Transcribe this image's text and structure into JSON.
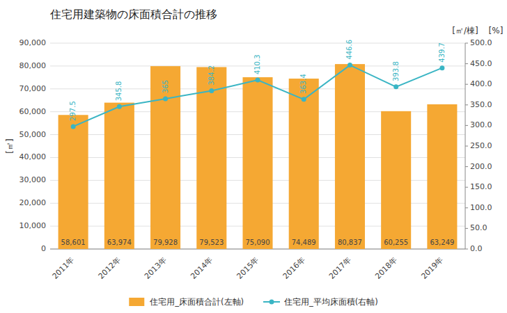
{
  "chart_data": {
    "type": "bar",
    "title": "住宅用建築物の床面積合計の推移",
    "categories": [
      "2011年",
      "2012年",
      "2013年",
      "2014年",
      "2015年",
      "2016年",
      "2017年",
      "2018年",
      "2019年"
    ],
    "series": [
      {
        "name": "住宅用_床面積合計(左軸)",
        "type": "bar",
        "color": "#f5a833",
        "values": [
          58601,
          63974,
          79928,
          79523,
          75090,
          74489,
          80837,
          60255,
          63249
        ],
        "value_labels": [
          "58,601",
          "63,974",
          "79,928",
          "79,523",
          "75,090",
          "74,489",
          "80,837",
          "60,255",
          "63,249"
        ]
      },
      {
        "name": "住宅用_平均床面積(右軸)",
        "type": "line",
        "color": "#3ab5c4",
        "marker": "circle",
        "axis": "y2",
        "values": [
          297.5,
          345.8,
          365,
          384.2,
          410.3,
          363.4,
          446.6,
          393.8,
          439.7
        ]
      }
    ],
    "y_label": "[㎡]",
    "y2_label": "[㎡/棟]",
    "annotations": [
      {
        "text": "[%]"
      }
    ],
    "ylim": [
      0,
      90000
    ],
    "yticks": [
      0,
      {
        "value": 10000,
        "label": "10,000"
      },
      {
        "value": 20000,
        "label": "20,000"
      },
      {
        "value": 30000,
        "label": "30,000"
      },
      {
        "value": 40000,
        "label": "40,000"
      },
      {
        "value": 50000,
        "label": "50,000"
      },
      {
        "value": 60000,
        "label": "60,000"
      },
      {
        "value": 70000,
        "label": "70,000"
      },
      {
        "value": 80000,
        "label": "80,000"
      },
      {
        "value": 90000,
        "label": "90,000"
      }
    ],
    "y2lim": [
      0,
      500.0
    ],
    "y2ticks": [
      {
        "value": 0,
        "label": "0.0"
      },
      {
        "value": 50,
        "label": "50.0"
      },
      {
        "value": 100,
        "label": "100.0"
      },
      {
        "value": 150,
        "label": "150.0"
      },
      {
        "value": 200,
        "label": "200.0"
      },
      {
        "value": 250,
        "label": "250.0"
      },
      {
        "value": 300,
        "label": "300.0"
      },
      {
        "value": 350,
        "label": "350.0"
      },
      {
        "value": 400,
        "label": "400.0"
      },
      {
        "value": 450,
        "label": "450.0"
      },
      {
        "value": 500,
        "label": "500.0"
      }
    ],
    "grid": true,
    "data_labels": true,
    "legend": "bottom"
  }
}
